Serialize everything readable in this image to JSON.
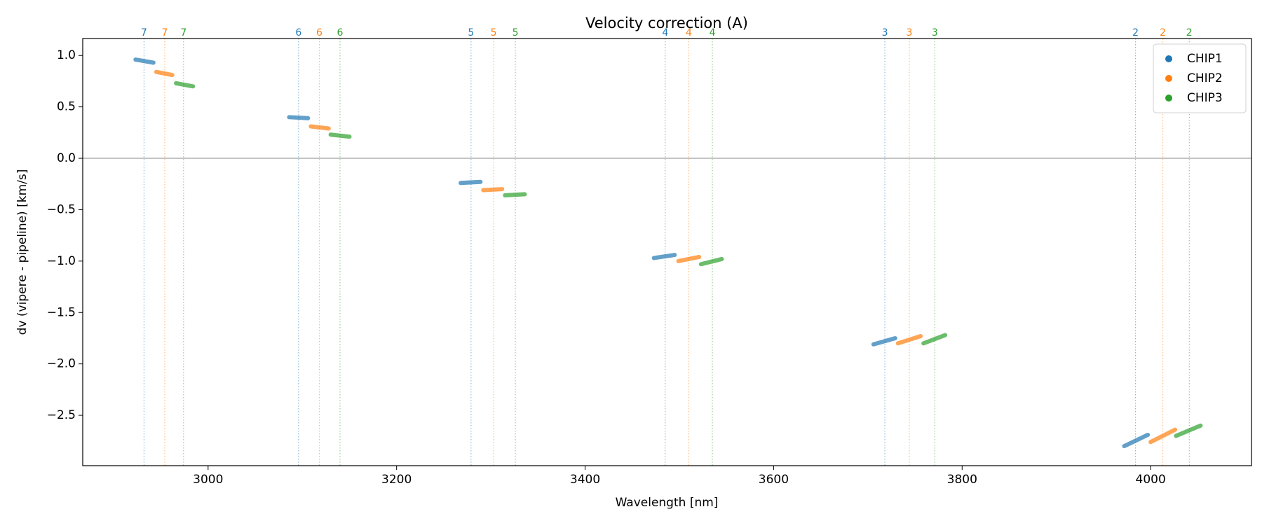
{
  "chart_data": {
    "type": "line",
    "title": "Velocity correction (A)",
    "x_label": "Wavelength [nm]",
    "y_label": "dv (vipere - pipeline) [km/s]",
    "xlim": [
      2867,
      4107
    ],
    "ylim": [
      -2.99,
      1.165
    ],
    "xticks": [
      3000,
      3200,
      3400,
      3600,
      3800,
      4000
    ],
    "yticks": [
      {
        "value": 1.0,
        "label": "1.0"
      },
      {
        "value": 0.5,
        "label": "0.5"
      },
      {
        "value": 0.0,
        "label": "0.0"
      },
      {
        "value": -0.5,
        "label": "−0.5"
      },
      {
        "value": -1.0,
        "label": "−1.0"
      },
      {
        "value": -1.5,
        "label": "−1.5"
      },
      {
        "value": -2.0,
        "label": "−2.0"
      },
      {
        "value": -2.5,
        "label": "−2.5"
      }
    ],
    "hline": 0,
    "legend": "upper right",
    "series": [
      {
        "name": "CHIP1",
        "color": "#1f77b4",
        "x": [
          2923,
          2942,
          null,
          3086,
          3106,
          null,
          3268,
          3289,
          null,
          3473,
          3495,
          null,
          3706,
          3729,
          null,
          3972,
          3997
        ],
        "values": [
          0.96,
          0.93,
          null,
          0.4,
          0.39,
          null,
          -0.24,
          -0.23,
          null,
          -0.97,
          -0.94,
          null,
          -1.81,
          -1.75,
          null,
          -2.8,
          -2.69
        ],
        "order_x": [
          2932,
          3096,
          3279,
          3485,
          3718,
          3984
        ],
        "orders": [
          7,
          6,
          5,
          4,
          3,
          2
        ]
      },
      {
        "name": "CHIP2",
        "color": "#ff7f0e",
        "x": [
          2945,
          2962,
          null,
          3109,
          3128,
          null,
          3292,
          3312,
          null,
          3499,
          3521,
          null,
          3732,
          3756,
          null,
          4000,
          4026
        ],
        "values": [
          0.84,
          0.81,
          null,
          0.31,
          0.29,
          null,
          -0.31,
          -0.3,
          null,
          -1.0,
          -0.96,
          null,
          -1.8,
          -1.73,
          null,
          -2.76,
          -2.64
        ],
        "order_x": [
          2954,
          3118,
          3303,
          3510,
          3744,
          4013
        ],
        "orders": [
          7,
          6,
          5,
          4,
          3,
          2
        ]
      },
      {
        "name": "CHIP3",
        "color": "#2ca02c",
        "x": [
          2966,
          2984,
          null,
          3130,
          3150,
          null,
          3315,
          3336,
          null,
          3523,
          3545,
          null,
          3759,
          3782,
          null,
          4027,
          4053
        ],
        "values": [
          0.73,
          0.7,
          null,
          0.23,
          0.21,
          null,
          -0.36,
          -0.35,
          null,
          -1.03,
          -0.98,
          null,
          -1.8,
          -1.72,
          null,
          -2.7,
          -2.6
        ],
        "order_x": [
          2974,
          3140,
          3326,
          3535,
          3771,
          4041
        ],
        "orders": [
          7,
          6,
          5,
          4,
          3,
          2
        ]
      }
    ]
  }
}
